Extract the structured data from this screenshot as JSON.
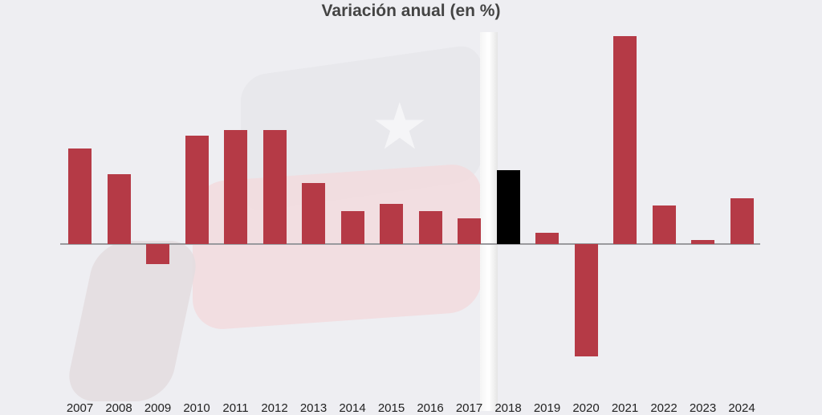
{
  "chart_data": {
    "type": "bar",
    "title": "Variación anual (en %)",
    "xlabel": "",
    "ylabel": "",
    "categories": [
      "2007",
      "2008",
      "2009",
      "2010",
      "2011",
      "2012",
      "2013",
      "2014",
      "2015",
      "2016",
      "2017",
      "2018",
      "2019",
      "2020",
      "2021",
      "2022",
      "2023",
      "2024"
    ],
    "values": [
      5.2,
      3.8,
      -1.1,
      5.9,
      6.2,
      6.2,
      3.3,
      1.8,
      2.2,
      1.8,
      1.4,
      4.0,
      0.6,
      -6.1,
      11.3,
      2.1,
      0.2,
      2.5
    ],
    "highlight": "2018",
    "colors": {
      "default": "#b53a46",
      "highlight": "#000000",
      "baseline": "#9a9a9e"
    },
    "ylim": [
      -7,
      12
    ],
    "grid": false,
    "legend": "none",
    "y_axis_ticks_visible": false
  }
}
